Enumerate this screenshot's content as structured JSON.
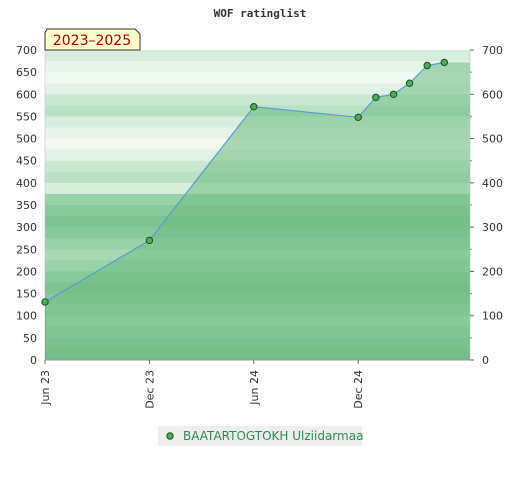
{
  "chart_data": {
    "type": "area",
    "title": "WOF ratinglist",
    "badge": "2023–2025",
    "xlabel": "",
    "ylabel": "",
    "ylim": [
      0,
      700
    ],
    "yticks": [
      0,
      50,
      100,
      150,
      200,
      250,
      300,
      350,
      400,
      450,
      500,
      550,
      600,
      650,
      700
    ],
    "y2ticks": [
      0,
      100,
      200,
      300,
      400,
      500,
      600,
      700
    ],
    "xlim": [
      "2023-06-01",
      "2025-06-15"
    ],
    "xticks": [
      {
        "date": "2023-06-01",
        "label": "Jun 23"
      },
      {
        "date": "2023-12-01",
        "label": "Dec 23"
      },
      {
        "date": "2024-06-01",
        "label": "Jun 24"
      },
      {
        "date": "2024-12-01",
        "label": "Dec 24"
      }
    ],
    "grid": false,
    "legend": "bottom-center",
    "series": [
      {
        "name": "BAATARTOGTOKH Ulziidarmaa",
        "points": [
          {
            "x": "2023-06-01",
            "y": 131
          },
          {
            "x": "2023-12-01",
            "y": 270
          },
          {
            "x": "2024-06-01",
            "y": 572
          },
          {
            "x": "2024-12-01",
            "y": 548
          },
          {
            "x": "2025-01-01",
            "y": 593
          },
          {
            "x": "2025-02-01",
            "y": 600
          },
          {
            "x": "2025-03-01",
            "y": 625
          },
          {
            "x": "2025-04-01",
            "y": 665
          },
          {
            "x": "2025-05-01",
            "y": 672
          }
        ]
      }
    ],
    "colors": {
      "area": "#6dbb82",
      "line": "#5b9bd5",
      "marker_fill": "#4caf50",
      "marker_stroke": "#1b4d2e",
      "legend_text": "#2e8b57",
      "badge_bg": "#ffffcc",
      "badge_text": "#990000"
    }
  }
}
